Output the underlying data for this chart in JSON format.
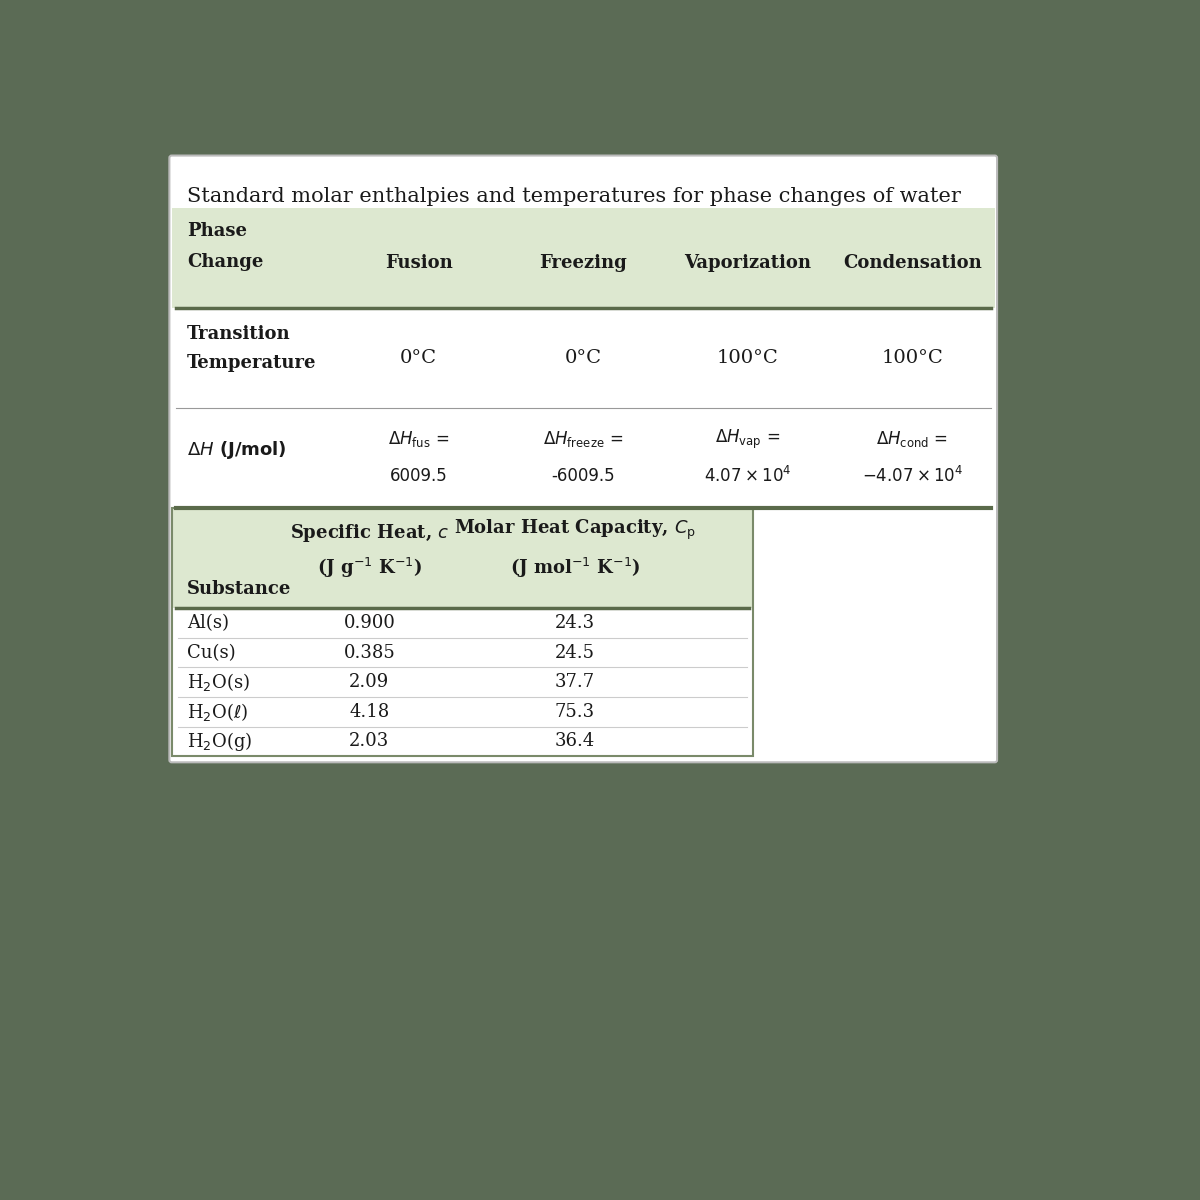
{
  "title": "Standard molar enthalpies and temperatures for phase changes of water",
  "bg_color": "#5b6b55",
  "card_bg": "#ffffff",
  "header_bg": "#dde8d0",
  "border_color": "#7a8a6a",
  "text_color": "#1a1a1a",
  "phase_change_cols": [
    "Fusion",
    "Freezing",
    "Vaporization",
    "Condensation"
  ],
  "transition_temps": [
    "0°C",
    "0°C",
    "100°C",
    "100°C"
  ],
  "specific_heat": [
    "0.900",
    "0.385",
    "2.09",
    "4.18",
    "2.03"
  ],
  "molar_heat": [
    "24.3",
    "24.5",
    "37.7",
    "75.3",
    "36.4"
  ],
  "dh_labels": [
    "fus",
    "freeze",
    "vap",
    "cond"
  ],
  "dh_values": [
    "6009.5",
    "-6009.5",
    "4.07 \\times 10^4",
    "-4.07 \\times 10^4"
  ],
  "substances_math": [
    "Al(s)",
    "Cu(s)",
    "H_{2}O(s)",
    "H_{2}O(\\ell)",
    "H_{2}O(g)"
  ]
}
